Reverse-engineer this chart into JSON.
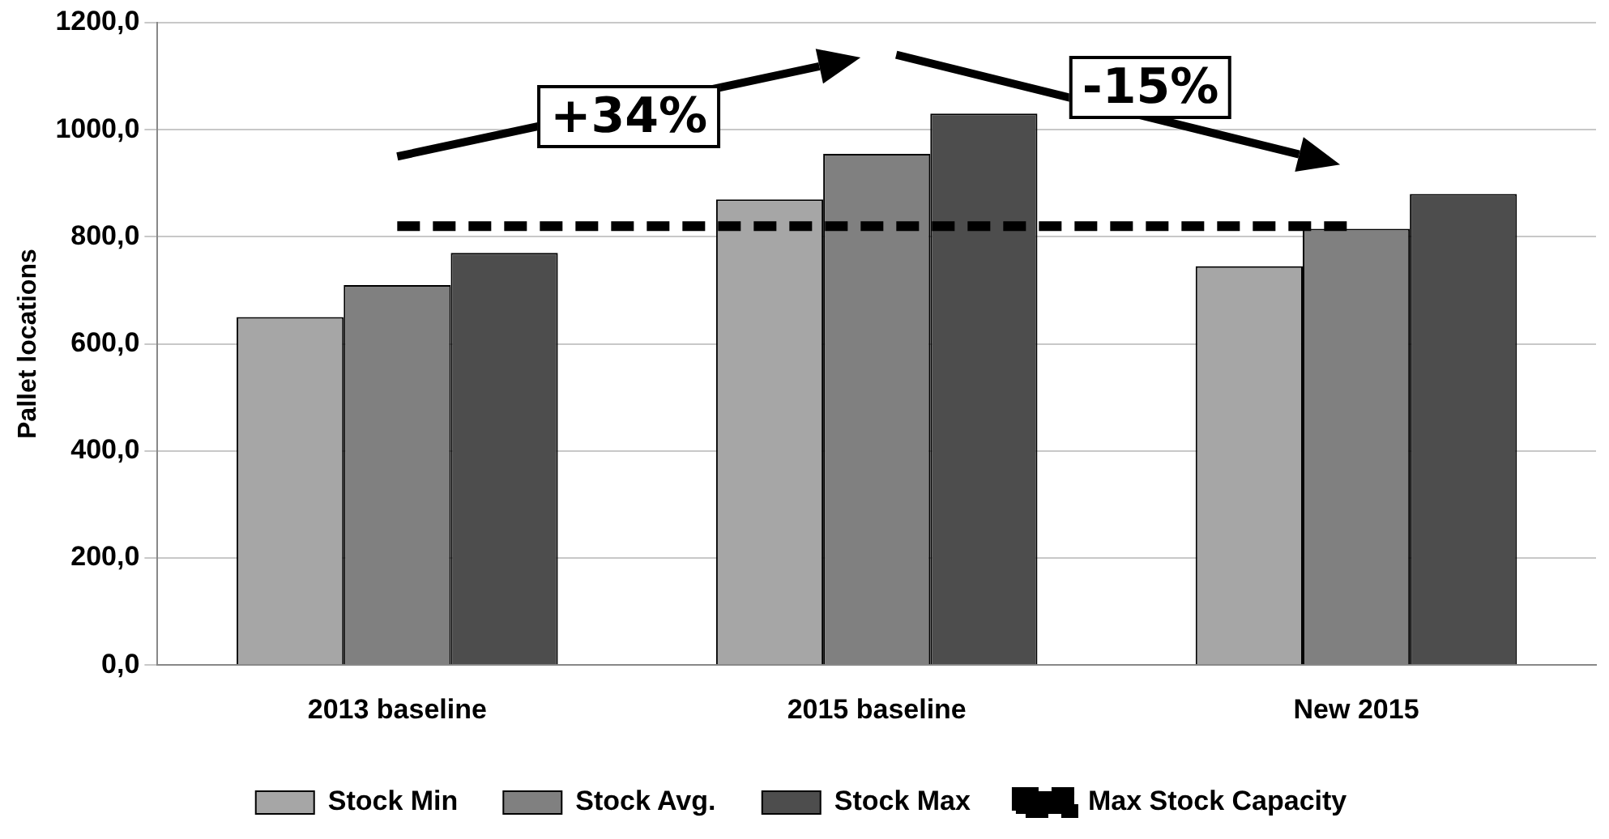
{
  "chart_data": {
    "type": "bar",
    "ylabel": "Pallet locations",
    "categories": [
      "2013 baseline",
      "2015 baseline",
      "New 2015"
    ],
    "series": [
      {
        "name": "Stock Min",
        "color": "#a6a6a6",
        "values": [
          650,
          870,
          745
        ]
      },
      {
        "name": "Stock Avg.",
        "color": "#808080",
        "values": [
          710,
          955,
          815
        ]
      },
      {
        "name": "Stock Max",
        "color": "#4d4d4d",
        "values": [
          770,
          1030,
          880
        ]
      },
      {
        "name": "Max Stock Capacity",
        "type": "line",
        "color": "#000000",
        "line_style": "dashed",
        "values": [
          820,
          820,
          820
        ]
      }
    ],
    "ylim": [
      0,
      1200
    ],
    "yticks": [
      {
        "value": 0,
        "label": "0,0"
      },
      {
        "value": 200,
        "label": "200,0"
      },
      {
        "value": 400,
        "label": "400,0"
      },
      {
        "value": 600,
        "label": "600,0"
      },
      {
        "value": 800,
        "label": "800,0"
      },
      {
        "value": 1000,
        "label": "1000,0"
      },
      {
        "value": 1200,
        "label": "1200,0"
      }
    ],
    "grid": "y",
    "legend": "bottom",
    "marker": "none",
    "annotations": [
      "+34%",
      "-15%"
    ]
  }
}
